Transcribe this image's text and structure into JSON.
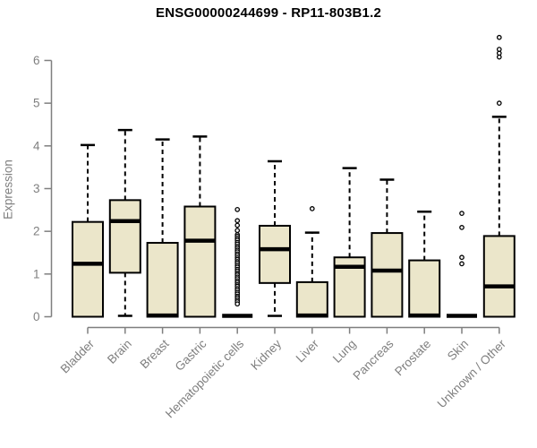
{
  "chart_data": {
    "type": "boxplot",
    "title": "ENSG00000244699 - RP11-803B1.2",
    "ylabel": "Expression",
    "ylim": [
      0,
      6.6
    ],
    "yticks": [
      0,
      1,
      2,
      3,
      4,
      5,
      6
    ],
    "grid": false,
    "legend": null,
    "categories": [
      "Bladder",
      "Brain",
      "Breast",
      "Gastric",
      "Hematopoietic cells",
      "Kidney",
      "Liver",
      "Lung",
      "Pancreas",
      "Prostate",
      "Skin",
      "Unknown / Other"
    ],
    "boxes": [
      {
        "label": "Bladder",
        "whisker_low": 0,
        "q1": 0,
        "median": 1.24,
        "q3": 2.22,
        "whisker_high": 4.02,
        "outliers": []
      },
      {
        "label": "Brain",
        "whisker_low": 0.02,
        "q1": 1.03,
        "median": 2.24,
        "q3": 2.73,
        "whisker_high": 4.37,
        "outliers": []
      },
      {
        "label": "Breast",
        "whisker_low": 0,
        "q1": 0,
        "median": 0.03,
        "q3": 1.73,
        "whisker_high": 4.15,
        "outliers": []
      },
      {
        "label": "Gastric",
        "whisker_low": 0,
        "q1": 0,
        "median": 1.78,
        "q3": 2.58,
        "whisker_high": 4.22,
        "outliers": []
      },
      {
        "label": "Hematopoietic cells",
        "whisker_low": 0,
        "q1": 0,
        "median": 0.02,
        "q3": 0,
        "whisker_high": 0,
        "outliers": [
          2.51,
          2.25,
          2.14,
          2.02,
          1.92,
          1.88,
          1.83,
          1.79,
          1.74,
          1.7,
          1.65,
          1.61,
          1.56,
          1.52,
          1.47,
          1.43,
          1.38,
          1.34,
          1.29,
          1.25,
          1.2,
          1.16,
          1.11,
          1.07,
          1.02,
          0.98,
          0.93,
          0.89,
          0.84,
          0.8,
          0.75,
          0.71,
          0.66,
          0.62,
          0.57,
          0.53,
          0.48,
          0.44,
          0.39,
          0.35,
          0.3
        ]
      },
      {
        "label": "Kidney",
        "whisker_low": 0.02,
        "q1": 0.79,
        "median": 1.58,
        "q3": 2.13,
        "whisker_high": 3.64,
        "outliers": []
      },
      {
        "label": "Liver",
        "whisker_low": 0,
        "q1": 0,
        "median": 0.03,
        "q3": 0.81,
        "whisker_high": 1.97,
        "outliers": [
          2.53
        ]
      },
      {
        "label": "Lung",
        "whisker_low": 0,
        "q1": 0,
        "median": 1.17,
        "q3": 1.39,
        "whisker_high": 3.48,
        "outliers": []
      },
      {
        "label": "Pancreas",
        "whisker_low": 0,
        "q1": 0,
        "median": 1.08,
        "q3": 1.96,
        "whisker_high": 3.21,
        "outliers": []
      },
      {
        "label": "Prostate",
        "whisker_low": 0,
        "q1": 0,
        "median": 0.03,
        "q3": 1.32,
        "whisker_high": 2.46,
        "outliers": []
      },
      {
        "label": "Skin",
        "whisker_low": 0,
        "q1": 0,
        "median": 0.02,
        "q3": 0,
        "whisker_high": 0,
        "outliers": [
          2.42,
          2.09,
          1.39,
          1.24
        ]
      },
      {
        "label": "Unknown / Other",
        "whisker_low": 0,
        "q1": 0,
        "median": 0.71,
        "q3": 1.89,
        "whisker_high": 4.68,
        "outliers": [
          6.54,
          6.26,
          6.17,
          6.08,
          5.0
        ]
      }
    ],
    "colors": {
      "box_fill": "#EBE6CA",
      "box_stroke": "#000000",
      "axis": "#7F7F7F",
      "title_text": "#000000",
      "background": "#FFFFFF"
    }
  }
}
